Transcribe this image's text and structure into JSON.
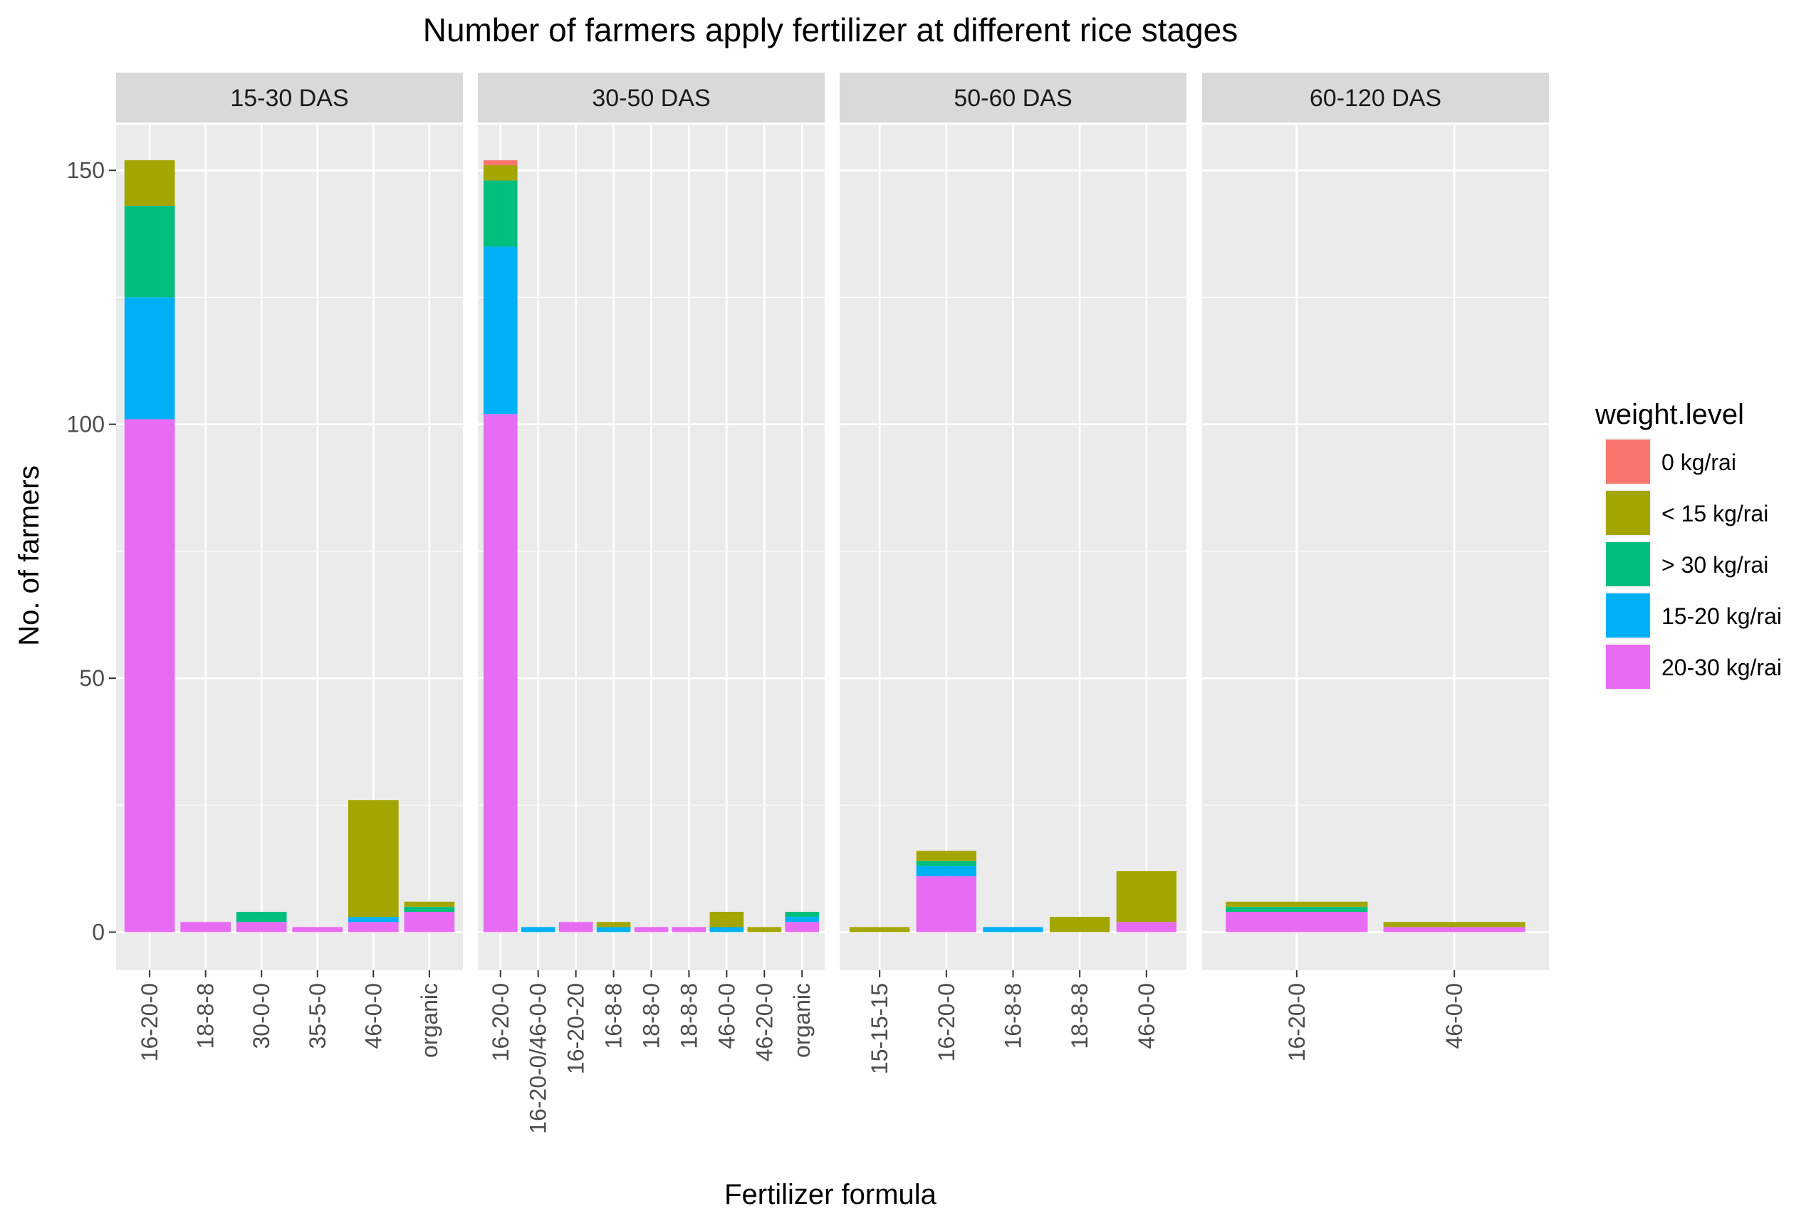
{
  "chart_data": {
    "type": "bar",
    "title": "Number of farmers apply fertilizer at different rice stages",
    "xlabel": "Fertilizer formula",
    "ylabel": "No. of farmers",
    "ylim": [
      -7.5,
      159
    ],
    "yticks": [
      0,
      50,
      100,
      150
    ],
    "grid": true,
    "legend": {
      "title": "weight.level",
      "position": "right",
      "entries": [
        {
          "label": " 0 kg/rai",
          "color": "#F8766D"
        },
        {
          "label": "< 15 kg/rai",
          "color": "#A3A500"
        },
        {
          "label": "> 30 kg/rai",
          "color": "#00BF7D"
        },
        {
          "label": "15-20 kg/rai",
          "color": "#00B0F6"
        },
        {
          "label": "20-30 kg/rai",
          "color": "#E76BF3"
        }
      ]
    },
    "stack_order_bottom_to_top": [
      "20-30 kg/rai",
      "15-20 kg/rai",
      "> 30 kg/rai",
      "< 15 kg/rai",
      " 0 kg/rai"
    ],
    "facets": [
      {
        "label": "15-30 DAS",
        "categories": [
          "16-20-0",
          "18-8-8",
          "30-0-0",
          "35-5-0",
          "46-0-0",
          "organic"
        ],
        "series": [
          {
            "name": " 0 kg/rai",
            "values": [
              0,
              0,
              0,
              0,
              0,
              0
            ]
          },
          {
            "name": "< 15 kg/rai",
            "values": [
              9,
              0,
              0,
              0,
              23,
              1
            ]
          },
          {
            "name": "> 30 kg/rai",
            "values": [
              18,
              0,
              2,
              0,
              0,
              1
            ]
          },
          {
            "name": "15-20 kg/rai",
            "values": [
              24,
              0,
              0,
              0,
              1,
              0
            ]
          },
          {
            "name": "20-30 kg/rai",
            "values": [
              101,
              2,
              2,
              1,
              2,
              4
            ]
          }
        ]
      },
      {
        "label": "30-50 DAS",
        "categories": [
          "16-20-0",
          "16-20-0/46-0-0",
          "16-20-20",
          "16-8-8",
          "18-8-0",
          "18-8-8",
          "46-0-0",
          "46-20-0",
          "organic"
        ],
        "series": [
          {
            "name": " 0 kg/rai",
            "values": [
              1,
              0,
              0,
              0,
              0,
              0,
              0,
              0,
              0
            ]
          },
          {
            "name": "< 15 kg/rai",
            "values": [
              3,
              0,
              0,
              1,
              0,
              0,
              3,
              1,
              0
            ]
          },
          {
            "name": "> 30 kg/rai",
            "values": [
              13,
              0,
              0,
              0,
              0,
              0,
              0,
              0,
              1
            ]
          },
          {
            "name": "15-20 kg/rai",
            "values": [
              33,
              1,
              0,
              1,
              0,
              0,
              1,
              0,
              1
            ]
          },
          {
            "name": "20-30 kg/rai",
            "values": [
              102,
              0,
              2,
              0,
              1,
              1,
              0,
              0,
              2
            ]
          }
        ]
      },
      {
        "label": "50-60 DAS",
        "categories": [
          "15-15-15",
          "16-20-0",
          "16-8-8",
          "18-8-8",
          "46-0-0"
        ],
        "series": [
          {
            "name": " 0 kg/rai",
            "values": [
              0,
              0,
              0,
              0,
              0
            ]
          },
          {
            "name": "< 15 kg/rai",
            "values": [
              1,
              2,
              0,
              3,
              10
            ]
          },
          {
            "name": "> 30 kg/rai",
            "values": [
              0,
              1,
              0,
              0,
              0
            ]
          },
          {
            "name": "15-20 kg/rai",
            "values": [
              0,
              2,
              1,
              0,
              0
            ]
          },
          {
            "name": "20-30 kg/rai",
            "values": [
              0,
              11,
              0,
              0,
              2
            ]
          }
        ]
      },
      {
        "label": "60-120 DAS",
        "categories": [
          "16-20-0",
          "46-0-0"
        ],
        "series": [
          {
            "name": " 0 kg/rai",
            "values": [
              0,
              0
            ]
          },
          {
            "name": "< 15 kg/rai",
            "values": [
              1,
              1
            ]
          },
          {
            "name": "> 30 kg/rai",
            "values": [
              1,
              0
            ]
          },
          {
            "name": "15-20 kg/rai",
            "values": [
              0,
              0
            ]
          },
          {
            "name": "20-30 kg/rai",
            "values": [
              4,
              1
            ]
          }
        ]
      }
    ]
  }
}
